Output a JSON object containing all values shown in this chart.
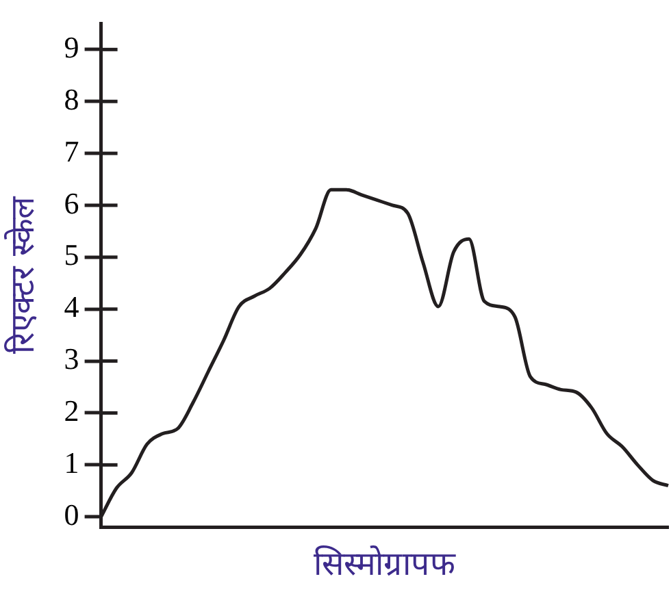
{
  "chart_data": {
    "type": "line",
    "xlabel": "सिस्मोग्रापफ",
    "ylabel": "रिएक्टर स्केल",
    "categories": [
      null,
      null,
      null,
      null,
      null,
      null,
      null,
      null,
      null,
      null,
      null,
      null,
      null,
      null,
      null,
      null,
      null,
      null,
      null,
      null,
      null,
      null,
      null,
      null,
      null,
      null,
      null,
      null,
      null,
      null,
      null,
      null,
      null,
      null,
      null,
      null,
      null,
      null
    ],
    "series": [
      {
        "color": "#231f20",
        "values": [
          0,
          0.55,
          0.85,
          1.4,
          1.6,
          1.7,
          2.2,
          2.8,
          3.4,
          4.05,
          4.25,
          4.4,
          4.7,
          5.05,
          5.55,
          6.3,
          6.3,
          6.2,
          6.1,
          6.0,
          5.85,
          4.9,
          4.05,
          5.1,
          5.35,
          4.15,
          4.05,
          3.85,
          2.7,
          2.55,
          2.45,
          2.4,
          2.1,
          1.6,
          1.35,
          1.0,
          0.7,
          0.6
        ]
      }
    ],
    "ylim": [
      -0.2,
      9.5
    ],
    "yticks": [
      0,
      1,
      2,
      3,
      4,
      5,
      6,
      7,
      8,
      9
    ],
    "grid": false,
    "legend": false,
    "marker": "none",
    "line_style": "solid",
    "tick_labels": "y"
  }
}
